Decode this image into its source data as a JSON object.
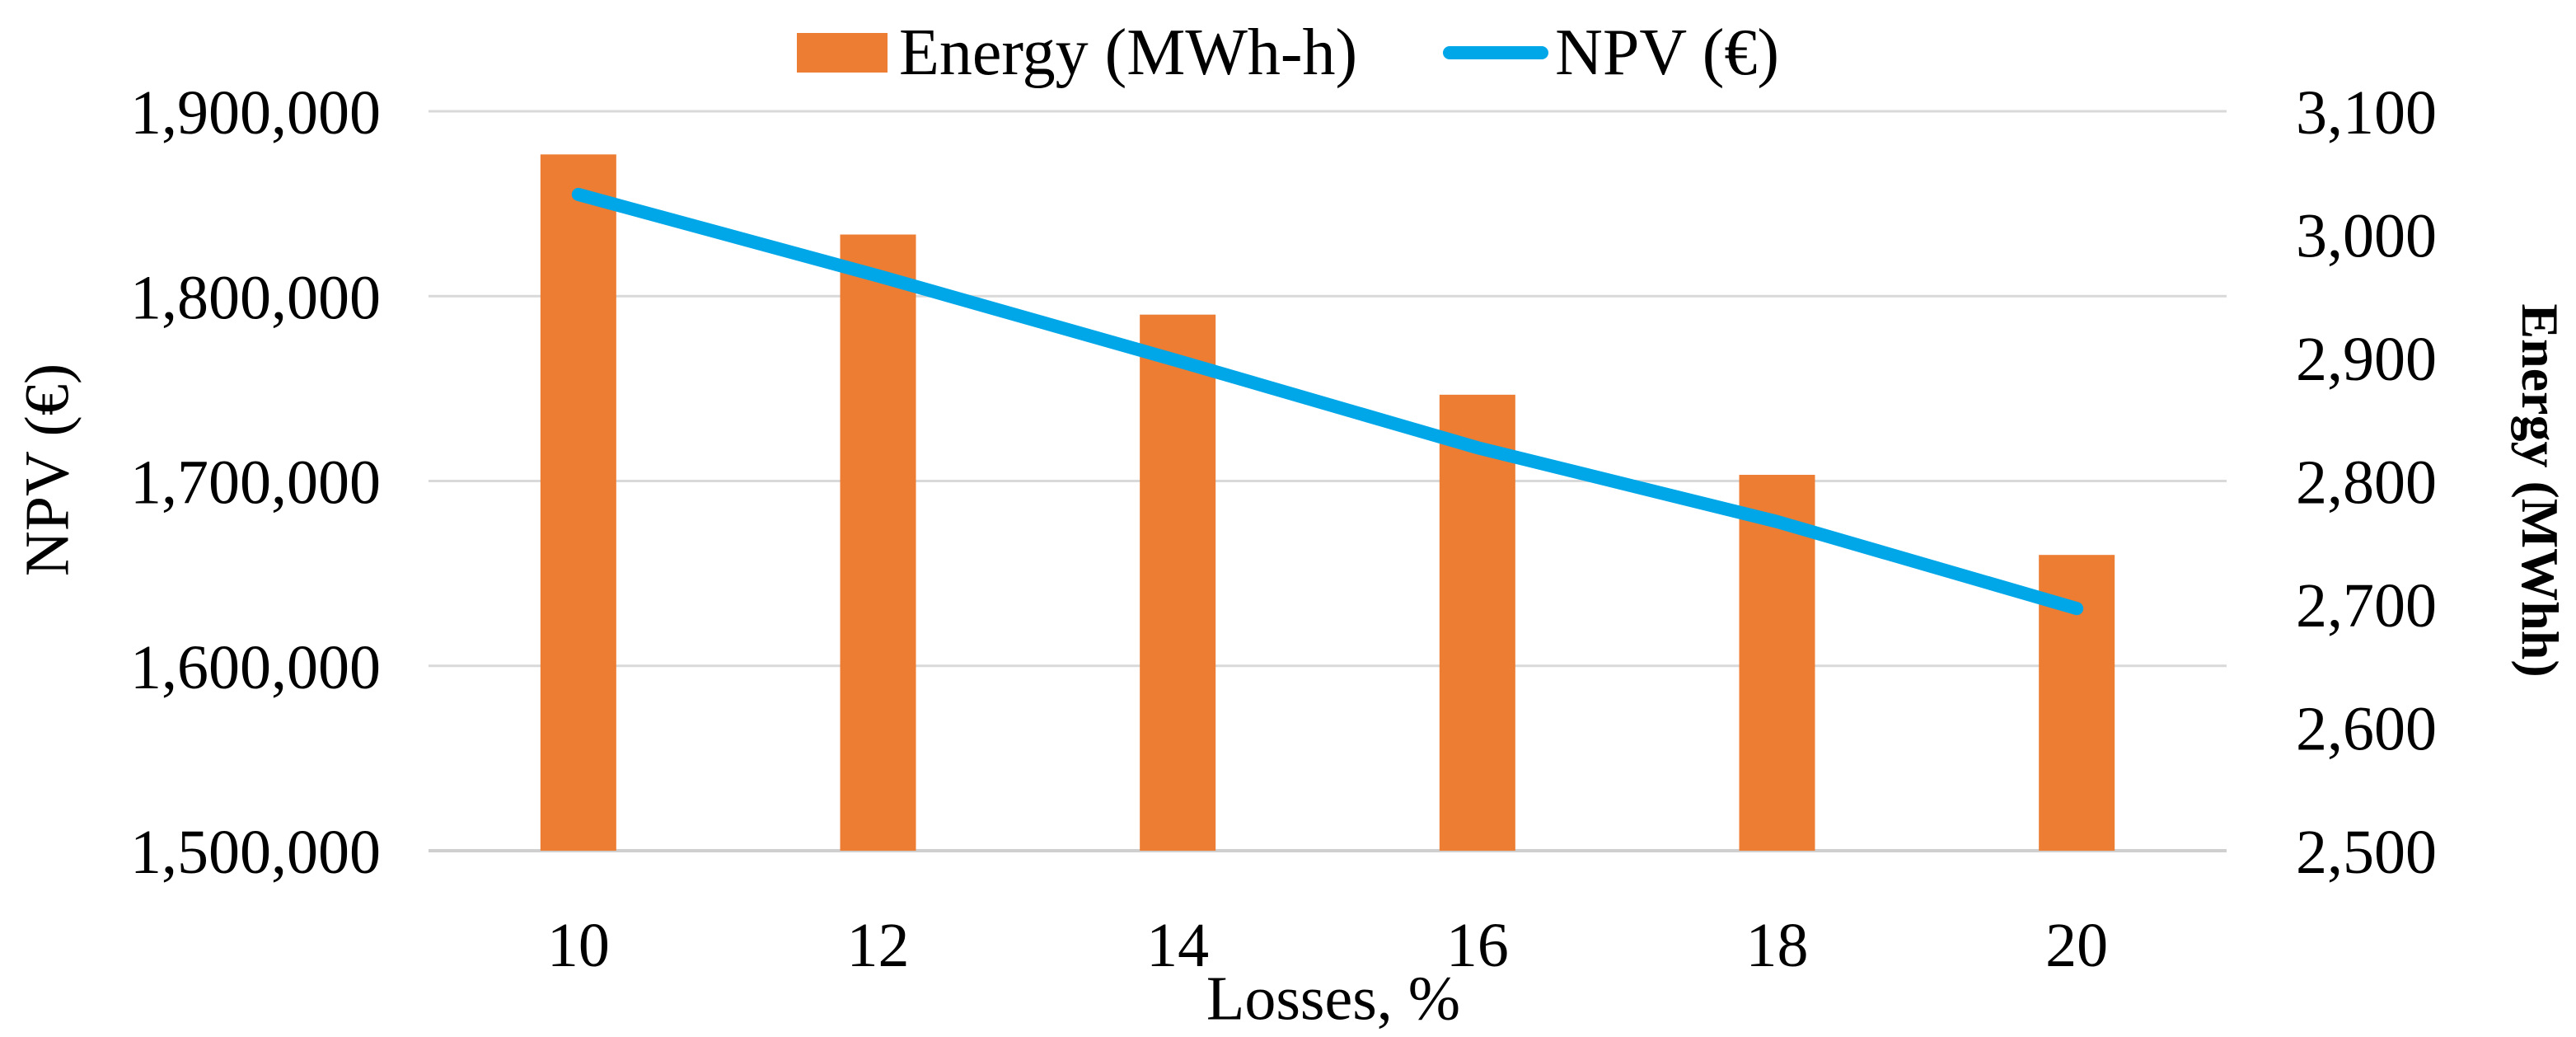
{
  "legend": {
    "items": [
      {
        "label": "Energy (MWh-h)",
        "marker": "bar-swatch-icon",
        "color": "#EC7D33"
      },
      {
        "label": "NPV (€)",
        "marker": "line-swatch-icon",
        "color": "#00A7E8"
      }
    ],
    "position": "top-center"
  },
  "chart_data": {
    "type": "bar+line combo",
    "categories": [
      "10",
      "12",
      "14",
      "16",
      "18",
      "20"
    ],
    "series": [
      {
        "name": "Energy (MWh-h)",
        "type": "bar",
        "axis": "right",
        "color": "#EC7D33",
        "values": [
          3065,
          3000,
          2935,
          2870,
          2805,
          2740
        ]
      },
      {
        "name": "NPV (€)",
        "type": "line",
        "axis": "left",
        "color": "#00A7E8",
        "values": [
          1855000,
          1811000,
          1765000,
          1718000,
          1678000,
          1631000
        ]
      }
    ],
    "xlabel": "Losses, %",
    "left_axis": {
      "title": "NPV (€)",
      "min": 1500000,
      "max": 1900000,
      "step": 100000,
      "tick_labels": [
        "1,900,000",
        "1,800,000",
        "1,700,000",
        "1,600,000",
        "1,500,000"
      ]
    },
    "right_axis": {
      "title": "Energy (MWhh)",
      "min": 2500,
      "max": 3100,
      "step": 100,
      "tick_labels": [
        "3,100",
        "3,000",
        "2,900",
        "2,800",
        "2,700",
        "2,600",
        "2,500"
      ]
    },
    "grid": true,
    "gridline_color": "#D9D9D9",
    "legend_position": "top"
  }
}
